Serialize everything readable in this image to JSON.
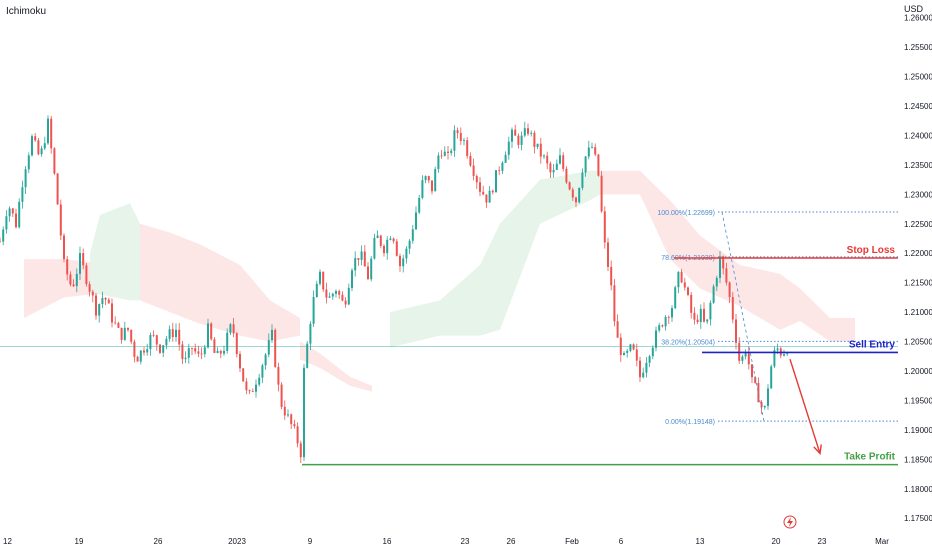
{
  "indicator_label": "Ichimoku",
  "currency_label": "USD",
  "colors": {
    "up": "#26a69a",
    "down": "#ef5350",
    "stop": "#e53935",
    "entry": "#1e22c8",
    "profit": "#43a047",
    "fib": "#4a8bd0",
    "cloud_green": "#e3f3e7",
    "cloud_red": "#fde3e3",
    "arrow": "#e53935"
  },
  "chart_data": {
    "type": "candlestick",
    "symbol": "",
    "ylim": [
      1.173,
      1.263
    ],
    "y_ticks": [
      "1.26000",
      "1.25500",
      "1.25000",
      "1.24500",
      "1.24000",
      "1.23500",
      "1.23000",
      "1.22500",
      "1.22000",
      "1.21500",
      "1.21000",
      "1.20500",
      "1.20000",
      "1.19500",
      "1.19000",
      "1.18500",
      "1.18000",
      "1.17500"
    ],
    "x_ticks": [
      {
        "label": "12",
        "t": 0
      },
      {
        "label": "19",
        "t": 79
      },
      {
        "label": "26",
        "t": 158
      },
      {
        "label": "2023",
        "t": 237
      },
      {
        "label": "9",
        "t": 310
      },
      {
        "label": "16",
        "t": 387
      },
      {
        "label": "23",
        "t": 465
      },
      {
        "label": "26",
        "t": 511
      },
      {
        "label": "Feb",
        "t": 572
      },
      {
        "label": "6",
        "t": 621
      },
      {
        "label": "13",
        "t": 700
      },
      {
        "label": "20",
        "t": 776
      },
      {
        "label": "23",
        "t": 822
      },
      {
        "label": "Mar",
        "t": 882
      }
    ],
    "price_path": [
      [
        0,
        1.222
      ],
      [
        8,
        1.2285
      ],
      [
        16,
        1.225
      ],
      [
        24,
        1.234
      ],
      [
        32,
        1.2395
      ],
      [
        40,
        1.236
      ],
      [
        48,
        1.242
      ],
      [
        56,
        1.231
      ],
      [
        64,
        1.218
      ],
      [
        72,
        1.214
      ],
      [
        80,
        1.219
      ],
      [
        88,
        1.215
      ],
      [
        96,
        1.2105
      ],
      [
        104,
        1.213
      ],
      [
        112,
        1.209
      ],
      [
        120,
        1.206
      ],
      [
        128,
        1.207
      ],
      [
        136,
        1.202
      ],
      [
        144,
        1.204
      ],
      [
        152,
        1.206
      ],
      [
        160,
        1.204
      ],
      [
        168,
        1.206
      ],
      [
        176,
        1.207
      ],
      [
        184,
        1.201
      ],
      [
        192,
        1.204
      ],
      [
        200,
        1.202
      ],
      [
        208,
        1.207
      ],
      [
        216,
        1.202
      ],
      [
        224,
        1.204
      ],
      [
        232,
        1.208
      ],
      [
        240,
        1.201
      ],
      [
        248,
        1.195
      ],
      [
        256,
        1.1985
      ],
      [
        264,
        1.202
      ],
      [
        272,
        1.206
      ],
      [
        280,
        1.195
      ],
      [
        288,
        1.192
      ],
      [
        296,
        1.189
      ],
      [
        302,
        1.1855
      ],
      [
        304,
        1.2
      ],
      [
        312,
        1.211
      ],
      [
        320,
        1.216
      ],
      [
        328,
        1.212
      ],
      [
        336,
        1.214
      ],
      [
        344,
        1.211
      ],
      [
        352,
        1.218
      ],
      [
        360,
        1.22
      ],
      [
        368,
        1.216
      ],
      [
        376,
        1.223
      ],
      [
        384,
        1.221
      ],
      [
        392,
        1.224
      ],
      [
        400,
        1.218
      ],
      [
        408,
        1.221
      ],
      [
        416,
        1.227
      ],
      [
        424,
        1.233
      ],
      [
        432,
        1.231
      ],
      [
        440,
        1.238
      ],
      [
        448,
        1.236
      ],
      [
        456,
        1.241
      ],
      [
        464,
        1.239
      ],
      [
        472,
        1.235
      ],
      [
        480,
        1.231
      ],
      [
        488,
        1.229
      ],
      [
        496,
        1.233
      ],
      [
        504,
        1.237
      ],
      [
        512,
        1.24
      ],
      [
        520,
        1.239
      ],
      [
        528,
        1.241
      ],
      [
        536,
        1.238
      ],
      [
        544,
        1.236
      ],
      [
        552,
        1.233
      ],
      [
        560,
        1.236
      ],
      [
        568,
        1.232
      ],
      [
        576,
        1.229
      ],
      [
        584,
        1.236
      ],
      [
        592,
        1.238
      ],
      [
        598,
        1.234
      ],
      [
        604,
        1.222
      ],
      [
        610,
        1.216
      ],
      [
        616,
        1.206
      ],
      [
        624,
        1.202
      ],
      [
        632,
        1.204
      ],
      [
        640,
        1.199
      ],
      [
        648,
        1.203
      ],
      [
        656,
        1.206
      ],
      [
        664,
        1.209
      ],
      [
        672,
        1.211
      ],
      [
        680,
        1.217
      ],
      [
        688,
        1.212
      ],
      [
        694,
        1.208
      ],
      [
        700,
        1.21
      ],
      [
        706,
        1.207
      ],
      [
        712,
        1.213
      ],
      [
        720,
        1.219
      ],
      [
        728,
        1.214
      ],
      [
        734,
        1.208
      ],
      [
        740,
        1.201
      ],
      [
        746,
        1.204
      ],
      [
        752,
        1.198
      ],
      [
        758,
        1.196
      ],
      [
        764,
        1.1925
      ],
      [
        770,
        1.2
      ],
      [
        776,
        1.204
      ],
      [
        782,
        1.203
      ],
      [
        788,
        1.2042
      ]
    ],
    "ichimoku_cloud": [
      {
        "bullish": false,
        "points": [
          [
            24,
            1.219,
            1.209
          ],
          [
            64,
            1.219,
            1.2125
          ],
          [
            90,
            1.2185,
            1.213
          ]
        ]
      },
      {
        "bullish": true,
        "points": [
          [
            90,
            1.22,
            1.213
          ],
          [
            100,
            1.2265,
            1.213
          ],
          [
            130,
            1.2285,
            1.212
          ],
          [
            140,
            1.225,
            1.212
          ]
        ]
      },
      {
        "bullish": false,
        "points": [
          [
            140,
            1.225,
            1.212
          ],
          [
            170,
            1.2235,
            1.21
          ],
          [
            200,
            1.2215,
            1.208
          ],
          [
            240,
            1.218,
            1.206
          ],
          [
            270,
            1.212,
            1.205
          ],
          [
            300,
            1.209,
            1.206
          ]
        ]
      },
      {
        "bullish": false,
        "points": [
          [
            300,
            1.205,
            1.202
          ],
          [
            320,
            1.203,
            1.2005
          ],
          [
            350,
            1.199,
            1.1975
          ],
          [
            372,
            1.1975,
            1.1965
          ]
        ]
      },
      {
        "bullish": true,
        "points": [
          [
            390,
            1.21,
            1.204
          ],
          [
            440,
            1.212,
            1.206
          ],
          [
            480,
            1.218,
            1.206
          ],
          [
            500,
            1.225,
            1.207
          ],
          [
            540,
            1.2325,
            1.225
          ],
          [
            590,
            1.234,
            1.229
          ],
          [
            600,
            1.234,
            1.23
          ]
        ]
      },
      {
        "bullish": false,
        "points": [
          [
            600,
            1.234,
            1.23
          ],
          [
            640,
            1.234,
            1.23
          ],
          [
            670,
            1.229,
            1.219
          ],
          [
            700,
            1.223,
            1.214
          ],
          [
            740,
            1.218,
            1.211
          ],
          [
            780,
            1.2165,
            1.207
          ],
          [
            800,
            1.214,
            1.2085
          ],
          [
            830,
            1.209,
            1.205
          ],
          [
            855,
            1.209,
            1.205
          ]
        ]
      }
    ],
    "fibonacci": [
      {
        "label": "100.00%(1.22699)",
        "value": 1.22699
      },
      {
        "label": "78.60%(1.21939)",
        "value": 1.21939
      },
      {
        "label": "38.20%(1.20504)",
        "value": 1.20504
      },
      {
        "label": "0.00%(1.19148)",
        "value": 1.19148
      }
    ],
    "levels": [
      {
        "name": "Stop Loss",
        "value": 1.21919,
        "price_label": "1.21919"
      },
      {
        "name": "Sell Entry",
        "value": 1.20315,
        "price_label": "1.20315"
      },
      {
        "name": "Take Profit",
        "value": 1.1841,
        "price_label": "1.18410"
      }
    ],
    "projection_arrow": {
      "from": [
        790,
        1.202
      ],
      "to": [
        820,
        1.186
      ]
    }
  }
}
